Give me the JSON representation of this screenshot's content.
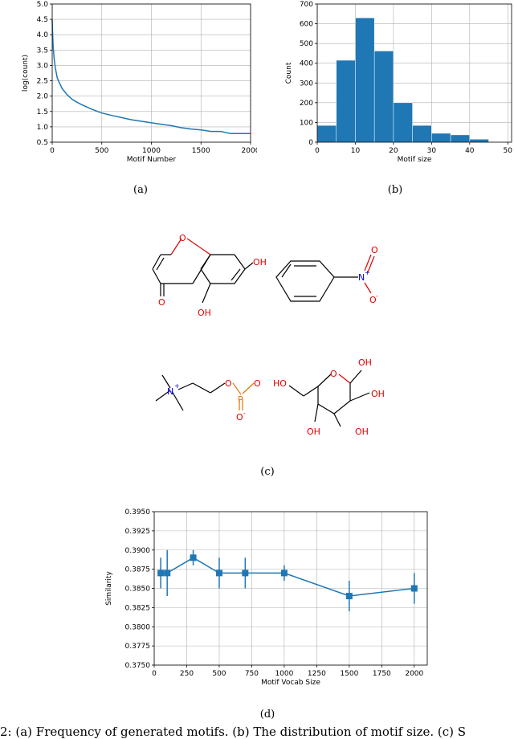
{
  "captions": {
    "a": "(a)",
    "b": "(b)",
    "c": "(c)",
    "d": "(d)"
  },
  "footer_text": "2: (a) Frequency of generated motifs. (b) The distribution of motif size. (c) S",
  "colors": {
    "series": "#1f77b4",
    "grid": "#b0b0b0",
    "oxygen": "#e00000",
    "nitrogen": "#0000e0",
    "phosphorus": "#e07800",
    "bond": "#000000"
  },
  "chart_data": [
    {
      "type": "line",
      "xlabel": "Motif Number",
      "ylabel": "log(count)",
      "xlim": [
        0,
        2000
      ],
      "ylim": [
        0.5,
        5.0
      ],
      "xticks": [
        "0",
        "500",
        "1000",
        "1500",
        "2000"
      ],
      "yticks": [
        "0.5",
        "1.0",
        "1.5",
        "2.0",
        "2.5",
        "3.0",
        "3.5",
        "4.0",
        "4.5",
        "5.0"
      ],
      "grid": true,
      "series": [
        {
          "x": [
            0,
            5,
            10,
            20,
            30,
            50,
            70,
            100,
            150,
            200,
            250,
            300,
            400,
            500,
            600,
            700,
            800,
            900,
            1000,
            1100,
            1200,
            1300,
            1400,
            1500,
            1600,
            1700,
            1800,
            1900,
            2000
          ],
          "y": [
            4.5,
            4.0,
            3.6,
            3.2,
            2.95,
            2.6,
            2.45,
            2.25,
            2.05,
            1.9,
            1.8,
            1.72,
            1.57,
            1.45,
            1.37,
            1.3,
            1.23,
            1.18,
            1.13,
            1.08,
            1.04,
            0.97,
            0.93,
            0.9,
            0.85,
            0.85,
            0.78,
            0.78,
            0.78
          ]
        }
      ]
    },
    {
      "type": "bar",
      "xlabel": "Motif size",
      "ylabel": "Count",
      "xlim": [
        0,
        51
      ],
      "ylim": [
        0,
        700
      ],
      "xticks": [
        "0",
        "10",
        "20",
        "30",
        "40",
        "50"
      ],
      "yticks": [
        "0",
        "100",
        "200",
        "300",
        "400",
        "500",
        "600",
        "700"
      ],
      "grid": true,
      "bin_edges": [
        0,
        5,
        10,
        15,
        20,
        25,
        30,
        35,
        40,
        45,
        50
      ],
      "values": [
        85,
        415,
        630,
        462,
        200,
        85,
        45,
        37,
        15,
        2
      ]
    },
    {
      "type": "line",
      "xlabel": "Motif Vocab Size",
      "ylabel": "Similarity",
      "xlim": [
        0,
        2100
      ],
      "ylim": [
        0.375,
        0.395
      ],
      "xticks": [
        "0",
        "250",
        "500",
        "750",
        "1000",
        "1250",
        "1500",
        "1750",
        "2000"
      ],
      "yticks": [
        "0.3750",
        "0.3775",
        "0.3800",
        "0.3825",
        "0.3850",
        "0.3875",
        "0.3900",
        "0.3925",
        "0.3950"
      ],
      "grid": true,
      "series": [
        {
          "x": [
            50,
            100,
            300,
            500,
            700,
            1000,
            1500,
            2000
          ],
          "y": [
            0.387,
            0.387,
            0.389,
            0.387,
            0.387,
            0.387,
            0.384,
            0.385
          ],
          "err": [
            0.002,
            0.003,
            0.001,
            0.002,
            0.002,
            0.001,
            0.002,
            0.002
          ]
        }
      ]
    }
  ],
  "molecules": {
    "chromone": {
      "o_ring": "O",
      "oh1": "OH",
      "oh2": "OH",
      "o_keto": "O"
    },
    "nitrobenzene": {
      "n": "N",
      "n_charge": "+",
      "o1": "O",
      "o2": "O",
      "o2_charge": "-"
    },
    "phosphocholine": {
      "n": "N",
      "n_charge": "+",
      "o": "O",
      "p": "P",
      "o_dbl": "O",
      "o_neg": "O",
      "o_neg_charge": "-"
    },
    "glucose": {
      "ho": "HO",
      "o_ring": "O",
      "oh1": "OH",
      "oh2": "OH",
      "oh3": "OH",
      "oh4": "OH"
    }
  }
}
